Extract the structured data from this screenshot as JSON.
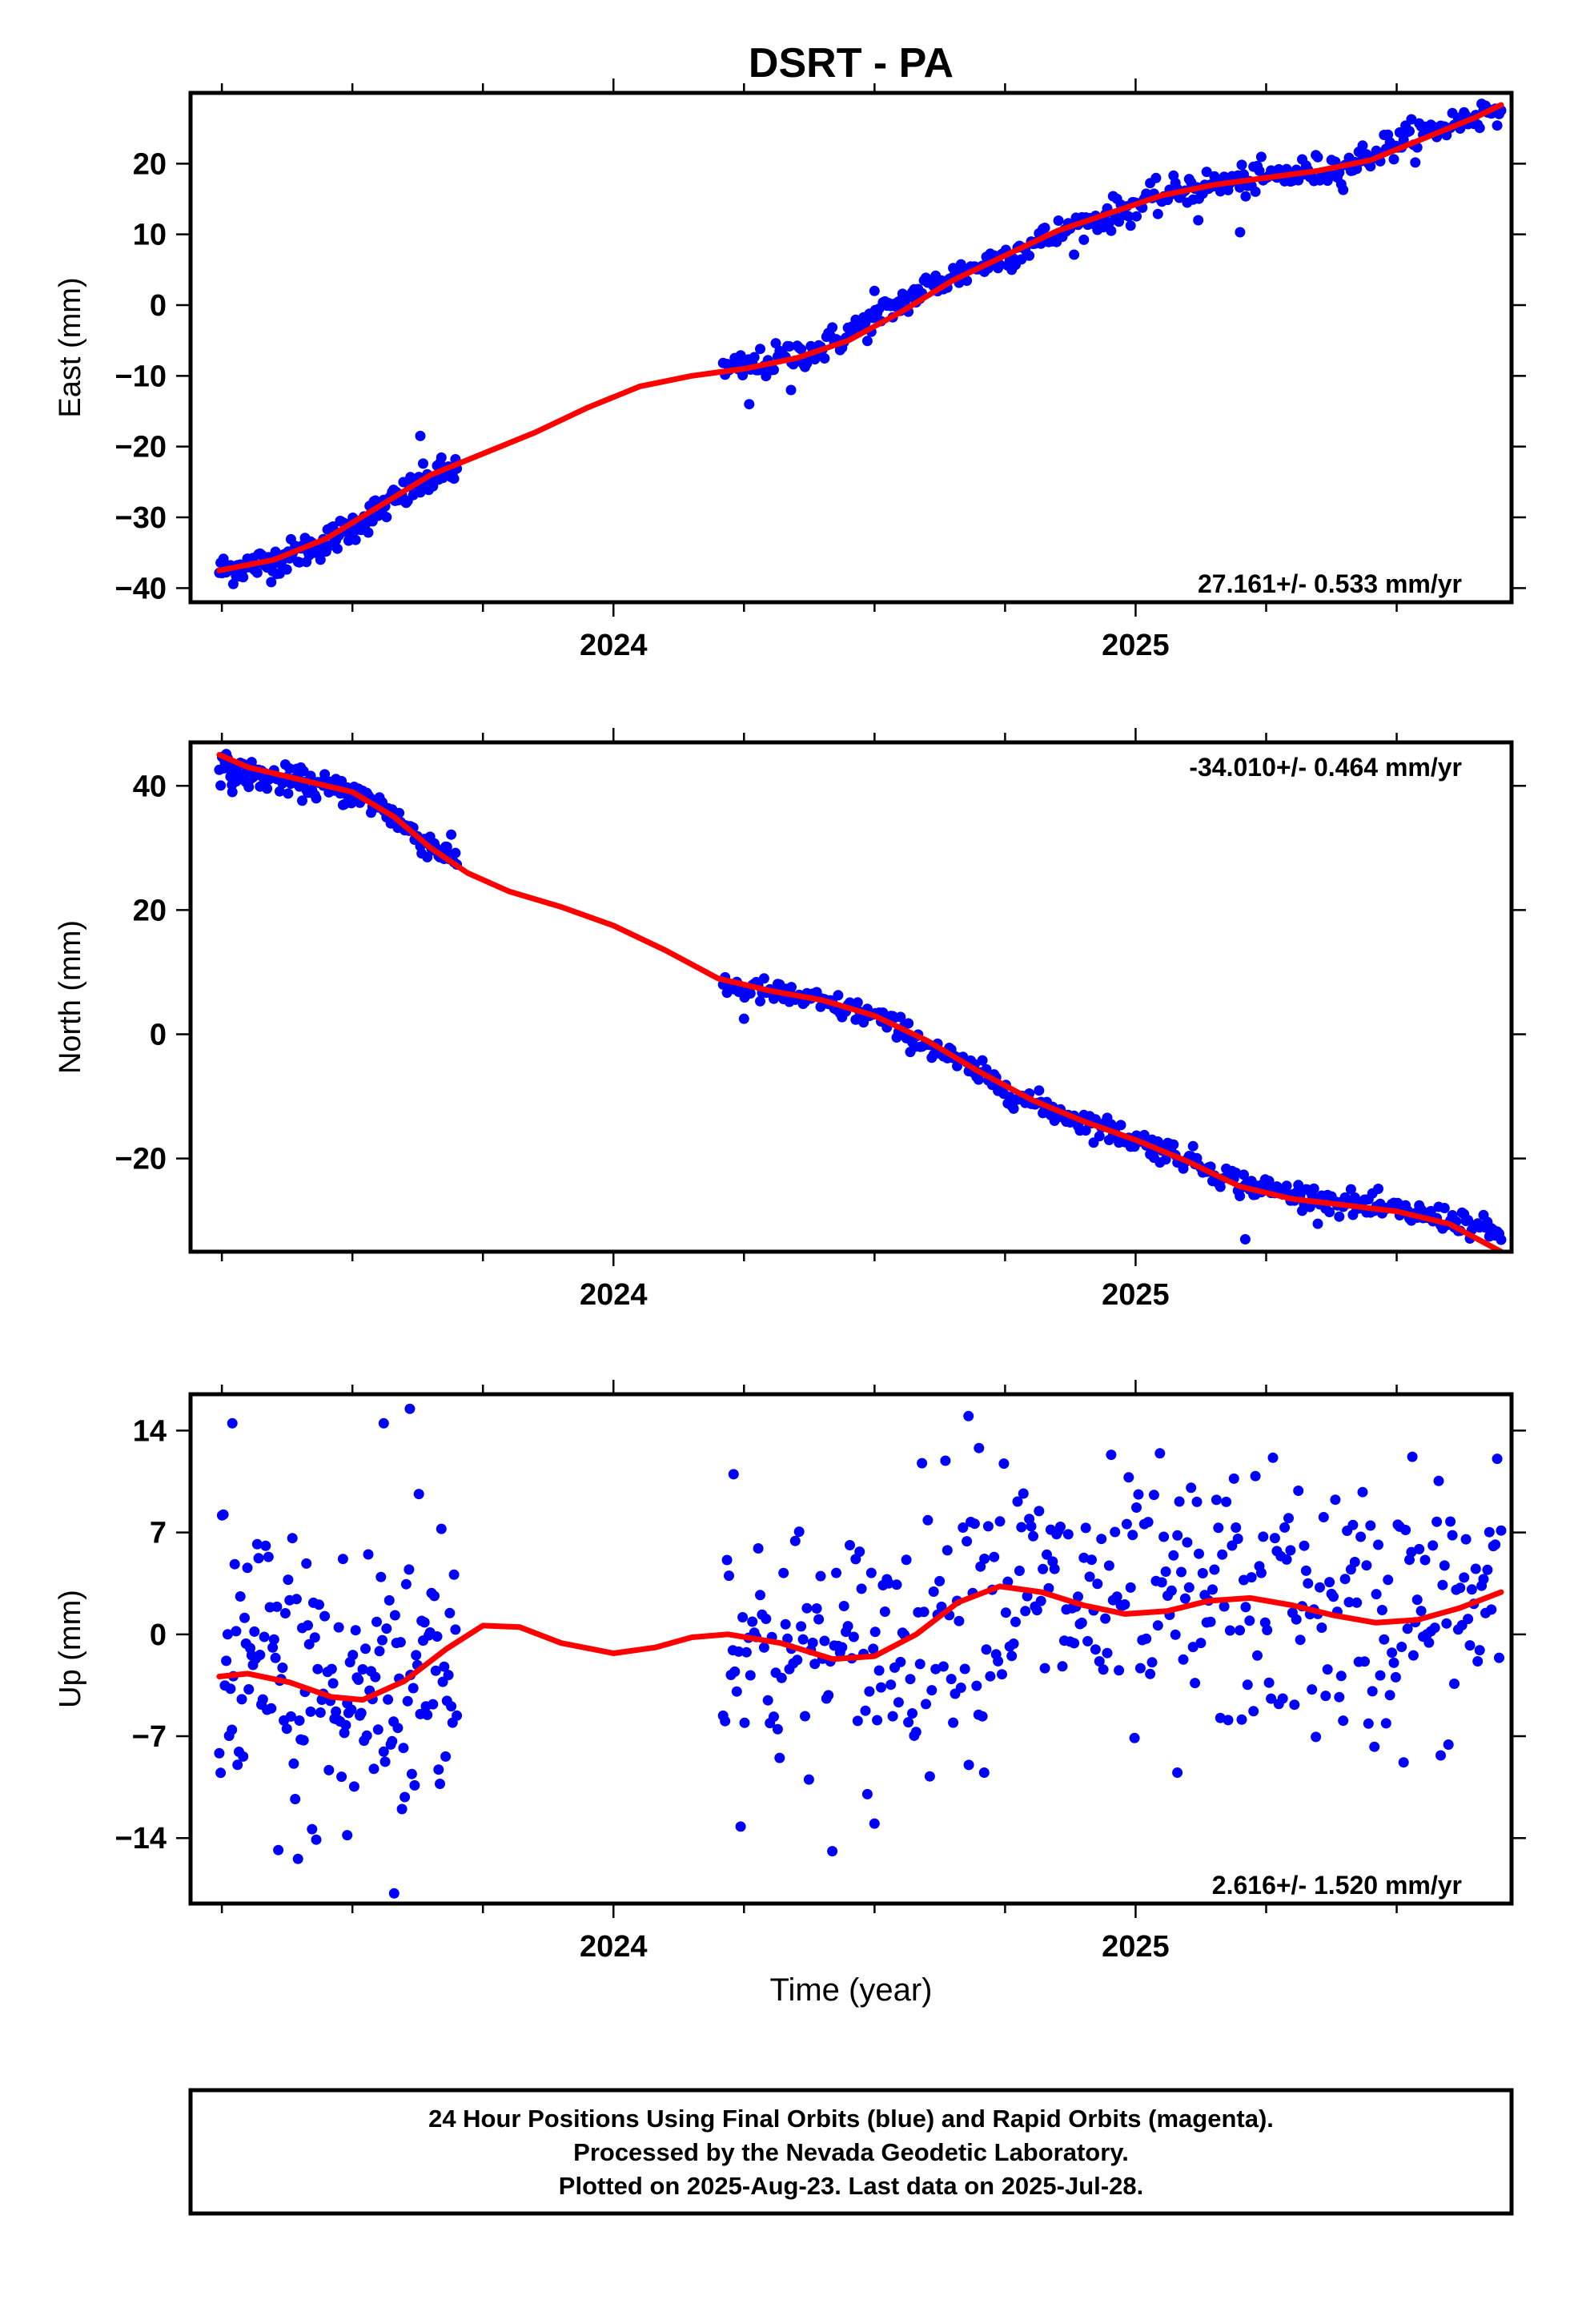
{
  "title": "DSRT - PA",
  "xlabel": "Time (year)",
  "footer": {
    "line1": "24 Hour Positions Using Final Orbits (blue) and Rapid Orbits (magenta).",
    "line2": "Processed by the Nevada Geodetic Laboratory.",
    "line3": "Plotted on 2025-Aug-23. Last data on 2025-Jul-28."
  },
  "colors": {
    "final": "#0000ff",
    "fit": "#ff0000",
    "frame": "#000000"
  },
  "chart_data": [
    {
      "type": "scatter",
      "ylabel": "East (mm)",
      "rate_text": "27.161+/- 0.533 mm/yr",
      "rate_position": "bottom-right",
      "xlim": [
        2023.19,
        2025.72
      ],
      "ylim": [
        -42,
        30
      ],
      "yticks": [
        -40,
        -30,
        -20,
        -10,
        0,
        10,
        20
      ],
      "xticks": [
        2024,
        2025
      ],
      "xtick_labels": [
        "2024",
        "2025"
      ],
      "grid": false,
      "segments": [
        {
          "t0": 2023.245,
          "t1": 2023.7,
          "y0": -37.5,
          "y1": -23.0,
          "path": [
            [
              2023.245,
              -37.5
            ],
            [
              2023.35,
              -36.2
            ],
            [
              2023.45,
              -33.5
            ],
            [
              2023.55,
              -29.0
            ],
            [
              2023.65,
              -24.5
            ],
            [
              2023.7,
              -23.0
            ]
          ],
          "noise": 1.1,
          "count": 170
        },
        {
          "t0": 2024.21,
          "t1": 2025.7,
          "y0": -10.5,
          "y1": 28.0,
          "path": [
            [
              2024.21,
              -9.5
            ],
            [
              2024.3,
              -8.0
            ],
            [
              2024.4,
              -6.0
            ],
            [
              2024.5,
              -2.0
            ],
            [
              2024.6,
              2.5
            ],
            [
              2024.7,
              5.5
            ],
            [
              2024.8,
              8.5
            ],
            [
              2024.9,
              11.5
            ],
            [
              2025.0,
              14.0
            ],
            [
              2025.1,
              16.5
            ],
            [
              2025.2,
              17.5
            ],
            [
              2025.3,
              18.5
            ],
            [
              2025.4,
              19.5
            ],
            [
              2025.5,
              23.0
            ],
            [
              2025.6,
              25.5
            ],
            [
              2025.7,
              28.0
            ]
          ],
          "noise": 1.1,
          "count": 400
        }
      ],
      "outliers": [
        [
          2024.26,
          -14.0
        ],
        [
          2024.34,
          -12.0
        ],
        [
          2025.2,
          10.3
        ],
        [
          2024.5,
          2.0
        ],
        [
          2023.63,
          -18.5
        ],
        [
          2025.12,
          12.0
        ]
      ],
      "fit": [
        [
          2023.245,
          -37.5
        ],
        [
          2023.35,
          -36.0
        ],
        [
          2023.45,
          -33.0
        ],
        [
          2023.55,
          -28.5
        ],
        [
          2023.65,
          -24.0
        ],
        [
          2023.75,
          -21.0
        ],
        [
          2023.85,
          -18.0
        ],
        [
          2023.95,
          -14.5
        ],
        [
          2024.05,
          -11.5
        ],
        [
          2024.15,
          -10.0
        ],
        [
          2024.25,
          -9.0
        ],
        [
          2024.35,
          -7.5
        ],
        [
          2024.45,
          -5.0
        ],
        [
          2024.55,
          -1.0
        ],
        [
          2024.65,
          3.5
        ],
        [
          2024.75,
          7.0
        ],
        [
          2024.85,
          10.5
        ],
        [
          2024.95,
          13.0
        ],
        [
          2025.05,
          15.5
        ],
        [
          2025.15,
          17.0
        ],
        [
          2025.25,
          18.0
        ],
        [
          2025.35,
          19.0
        ],
        [
          2025.45,
          20.5
        ],
        [
          2025.55,
          23.5
        ],
        [
          2025.65,
          26.5
        ],
        [
          2025.7,
          28.3
        ]
      ]
    },
    {
      "type": "scatter",
      "ylabel": "North (mm)",
      "rate_text": "-34.010+/- 0.464 mm/yr",
      "rate_position": "top-right",
      "xlim": [
        2023.19,
        2025.72
      ],
      "ylim": [
        -35,
        47
      ],
      "yticks": [
        -20,
        0,
        20,
        40
      ],
      "xticks": [
        2024,
        2025
      ],
      "xtick_labels": [
        "2024",
        "2025"
      ],
      "grid": false,
      "segments": [
        {
          "t0": 2023.245,
          "t1": 2023.7,
          "y0": 43.0,
          "y1": 28.0,
          "path": [
            [
              2023.245,
              43.0
            ],
            [
              2023.3,
              41.8
            ],
            [
              2023.4,
              40.5
            ],
            [
              2023.5,
              38.8
            ],
            [
              2023.56,
              36.5
            ],
            [
              2023.62,
              32.0
            ],
            [
              2023.7,
              28.0
            ]
          ],
          "noise": 1.1,
          "count": 170
        },
        {
          "t0": 2024.21,
          "t1": 2025.7,
          "y0": 8.0,
          "y1": -32.5,
          "path": [
            [
              2024.21,
              8.0
            ],
            [
              2024.35,
              6.0
            ],
            [
              2024.5,
              3.0
            ],
            [
              2024.65,
              -4.0
            ],
            [
              2024.8,
              -11.0
            ],
            [
              2024.95,
              -15.5
            ],
            [
              2025.1,
              -20.0
            ],
            [
              2025.2,
              -24.0
            ],
            [
              2025.35,
              -26.5
            ],
            [
              2025.5,
              -28.5
            ],
            [
              2025.62,
              -30.0
            ],
            [
              2025.7,
              -32.5
            ]
          ],
          "noise": 1.0,
          "count": 400
        }
      ],
      "outliers": [
        [
          2024.25,
          2.5
        ],
        [
          2025.21,
          -33.0
        ],
        [
          2023.27,
          39.0
        ]
      ],
      "fit": [
        [
          2023.245,
          45.0
        ],
        [
          2023.3,
          43.0
        ],
        [
          2023.4,
          41.0
        ],
        [
          2023.5,
          39.0
        ],
        [
          2023.58,
          35.0
        ],
        [
          2023.65,
          30.0
        ],
        [
          2023.72,
          26.0
        ],
        [
          2023.8,
          23.0
        ],
        [
          2023.9,
          20.5
        ],
        [
          2024.0,
          17.5
        ],
        [
          2024.1,
          13.5
        ],
        [
          2024.2,
          9.0
        ],
        [
          2024.3,
          7.0
        ],
        [
          2024.4,
          5.5
        ],
        [
          2024.5,
          3.0
        ],
        [
          2024.6,
          -1.0
        ],
        [
          2024.7,
          -6.0
        ],
        [
          2024.8,
          -10.5
        ],
        [
          2024.9,
          -14.0
        ],
        [
          2025.0,
          -17.0
        ],
        [
          2025.1,
          -20.5
        ],
        [
          2025.2,
          -24.5
        ],
        [
          2025.3,
          -26.5
        ],
        [
          2025.4,
          -27.5
        ],
        [
          2025.5,
          -28.5
        ],
        [
          2025.6,
          -30.5
        ],
        [
          2025.7,
          -35.0
        ]
      ]
    },
    {
      "type": "scatter",
      "ylabel": "Up (mm)",
      "rate_text": "2.616+/- 1.520 mm/yr",
      "rate_position": "bottom-right",
      "xlim": [
        2023.19,
        2025.72
      ],
      "ylim": [
        -18.5,
        16.5
      ],
      "yticks": [
        -14,
        -7,
        0,
        7,
        14
      ],
      "xticks": [
        2024,
        2025
      ],
      "xtick_labels": [
        "2024",
        "2025"
      ],
      "grid": false,
      "segments": [
        {
          "t0": 2023.245,
          "t1": 2023.7,
          "y0": -3.0,
          "y1": -1.0,
          "path": [
            [
              2023.245,
              -3.0
            ],
            [
              2023.3,
              -2.5
            ],
            [
              2023.4,
              -4.0
            ],
            [
              2023.5,
              -4.5
            ],
            [
              2023.6,
              -2.5
            ],
            [
              2023.7,
              -1.0
            ]
          ],
          "noise": 5.5,
          "count": 170
        },
        {
          "t0": 2024.21,
          "t1": 2025.7,
          "y0": 0.0,
          "y1": 2.5,
          "path": [
            [
              2024.21,
              0.0
            ],
            [
              2024.3,
              -1.0
            ],
            [
              2024.45,
              -2.0
            ],
            [
              2024.55,
              0.0
            ],
            [
              2024.65,
              2.5
            ],
            [
              2024.75,
              3.5
            ],
            [
              2024.85,
              2.5
            ],
            [
              2025.0,
              1.5
            ],
            [
              2025.15,
              2.5
            ],
            [
              2025.3,
              2.0
            ],
            [
              2025.45,
              1.0
            ],
            [
              2025.6,
              1.5
            ],
            [
              2025.7,
              2.5
            ]
          ],
          "noise": 4.5,
          "count": 400
        }
      ],
      "outliers": [
        [
          2023.27,
          14.5
        ],
        [
          2023.56,
          14.5
        ],
        [
          2023.61,
          15.5
        ],
        [
          2024.68,
          15.0
        ],
        [
          2023.58,
          -17.8
        ],
        [
          2023.49,
          -13.8
        ],
        [
          2024.5,
          -13.0
        ],
        [
          2024.71,
          -9.5
        ],
        [
          2025.08,
          -9.5
        ],
        [
          2025.53,
          12.2
        ],
        [
          2024.23,
          11.0
        ],
        [
          2024.7,
          12.8
        ]
      ],
      "fit": [
        [
          2023.245,
          -2.9
        ],
        [
          2023.3,
          -2.7
        ],
        [
          2023.38,
          -3.3
        ],
        [
          2023.46,
          -4.3
        ],
        [
          2023.52,
          -4.5
        ],
        [
          2023.6,
          -3.2
        ],
        [
          2023.68,
          -1.0
        ],
        [
          2023.75,
          0.6
        ],
        [
          2023.82,
          0.5
        ],
        [
          2023.9,
          -0.6
        ],
        [
          2024.0,
          -1.3
        ],
        [
          2024.08,
          -0.9
        ],
        [
          2024.15,
          -0.2
        ],
        [
          2024.22,
          0.0
        ],
        [
          2024.32,
          -0.6
        ],
        [
          2024.42,
          -1.7
        ],
        [
          2024.5,
          -1.5
        ],
        [
          2024.58,
          0.0
        ],
        [
          2024.66,
          2.2
        ],
        [
          2024.74,
          3.3
        ],
        [
          2024.82,
          2.9
        ],
        [
          2024.9,
          2.0
        ],
        [
          2024.98,
          1.4
        ],
        [
          2025.06,
          1.6
        ],
        [
          2025.14,
          2.3
        ],
        [
          2025.22,
          2.5
        ],
        [
          2025.3,
          2.0
        ],
        [
          2025.38,
          1.3
        ],
        [
          2025.46,
          0.8
        ],
        [
          2025.54,
          1.0
        ],
        [
          2025.62,
          1.8
        ],
        [
          2025.7,
          2.9
        ]
      ]
    }
  ]
}
